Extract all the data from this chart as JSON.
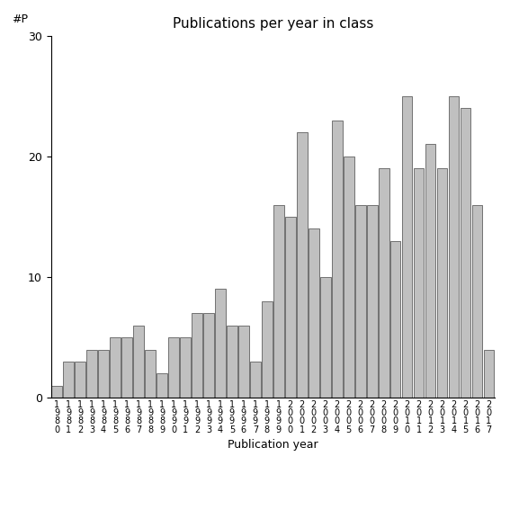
{
  "years": [
    "1980",
    "1981",
    "1982",
    "1983",
    "1984",
    "1985",
    "1986",
    "1987",
    "1988",
    "1989",
    "1990",
    "1991",
    "1992",
    "1993",
    "1994",
    "1995",
    "1996",
    "1997",
    "1998",
    "1999",
    "2000",
    "2001",
    "2002",
    "2003",
    "2004",
    "2005",
    "2006",
    "2007",
    "2008",
    "2009",
    "2010",
    "2011",
    "2012",
    "2013",
    "2014",
    "2015",
    "2016",
    "2017"
  ],
  "values": [
    1,
    3,
    3,
    4,
    4,
    5,
    5,
    6,
    4,
    2,
    5,
    5,
    7,
    7,
    9,
    6,
    6,
    3,
    8,
    16,
    15,
    22,
    14,
    10,
    23,
    20,
    16,
    16,
    19,
    13,
    25,
    19,
    21,
    19,
    25,
    24,
    16,
    4
  ],
  "title": "Publications per year in class",
  "xlabel": "Publication year",
  "ylabel": "#P",
  "ylim": [
    0,
    30
  ],
  "bar_color": "#c0c0c0",
  "bar_edge_color": "#606060",
  "background_color": "#ffffff",
  "yticks": [
    0,
    10,
    20,
    30
  ],
  "title_fontsize": 11,
  "axis_fontsize": 9,
  "tick_fontsize": 7
}
